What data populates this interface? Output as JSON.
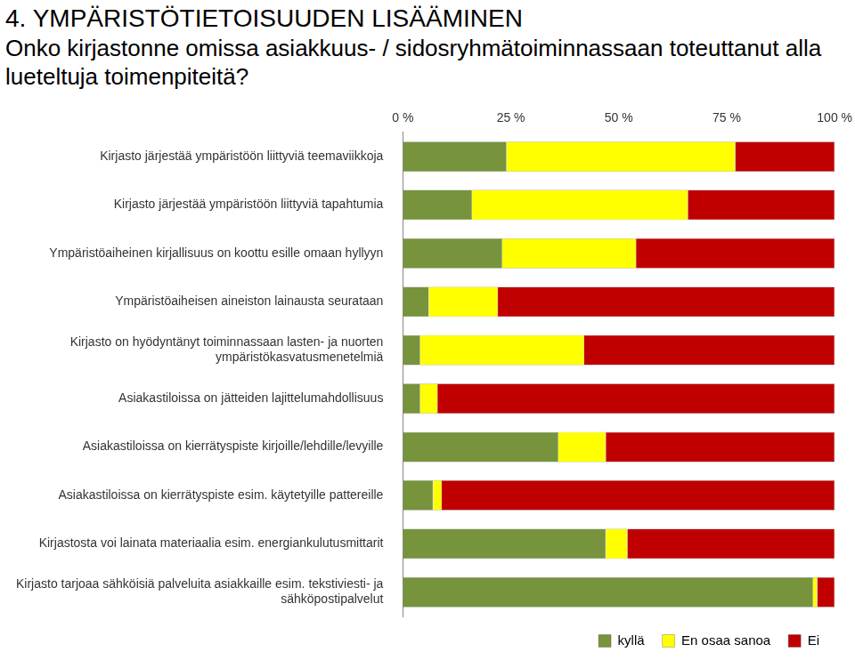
{
  "chart_data": {
    "type": "bar",
    "orientation": "horizontal",
    "stacked": true,
    "title": "4. YMPÄRISTÖTIETOISUUDEN LISÄÄMINEN",
    "subtitle": "Onko kirjastonne omissa asiakkuus- / sidosryhmätoiminnassaan toteuttanut alla lueteltuja toimenpiteitä?",
    "categories": [
      "Kirjasto järjestää ympäristöön liittyviä teemaviikkoja",
      "Kirjasto järjestää ympäristöön liittyviä tapahtumia",
      "Ympäristöaiheinen kirjallisuus on koottu esille omaan hyllyyn",
      "Ympäristöaiheisen aineiston lainausta seurataan",
      "Kirjasto on hyödyntänyt toiminnassaan lasten- ja nuorten ympäristökasvatusmenetelmiä",
      "Asiakastiloissa on jätteiden lajittelumahdollisuus",
      "Asiakastiloissa on kierrätyspiste kirjoille/lehdille/levyille",
      "Asiakastiloissa on kierrätyspiste esim. käytetyille pattereille",
      "Kirjastosta voi lainata materiaalia esim. energiankulutusmittarit",
      "Kirjasto tarjoaa sähköisiä palveluita asiakkaille esim. tekstiviesti- ja sähköpostipalvelut"
    ],
    "series": [
      {
        "name": "kyllä",
        "color": "#77933c",
        "values": [
          24,
          16,
          23,
          6,
          4,
          4,
          36,
          7,
          47,
          95
        ]
      },
      {
        "name": "En osaa sanoa",
        "color": "#ffff00",
        "values": [
          53,
          50,
          31,
          16,
          38,
          4,
          11,
          2,
          5,
          1
        ]
      },
      {
        "name": "Ei",
        "color": "#c00000",
        "values": [
          23,
          34,
          46,
          78,
          58,
          92,
          53,
          91,
          48,
          4
        ]
      }
    ],
    "xlim": [
      0,
      100
    ],
    "xticks": [
      {
        "value": 0,
        "label": "0 %"
      },
      {
        "value": 25,
        "label": "25 %"
      },
      {
        "value": 50,
        "label": "50 %"
      },
      {
        "value": 75,
        "label": "75 %"
      },
      {
        "value": 100,
        "label": "100 %"
      }
    ],
    "grid": false,
    "legend": "bottom-right"
  }
}
